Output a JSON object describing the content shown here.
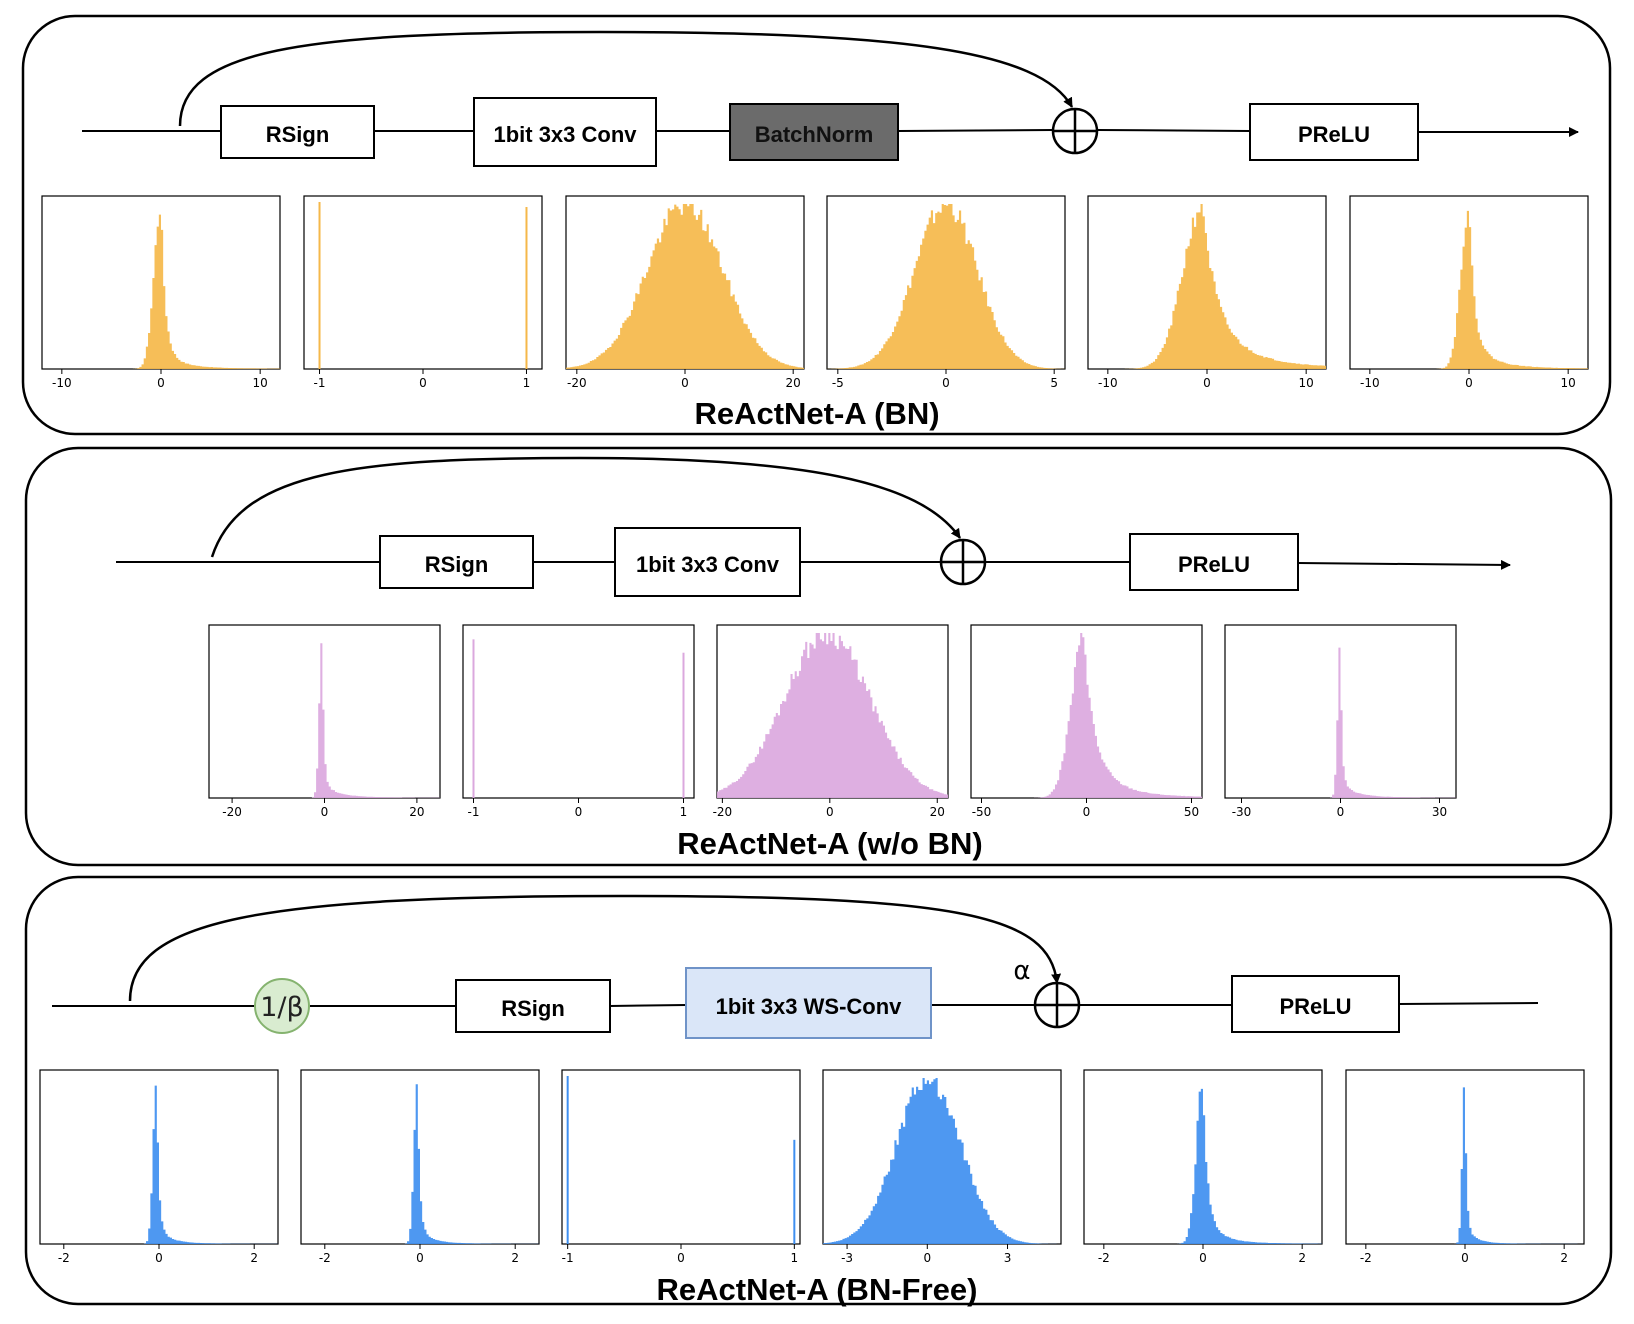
{
  "colors": {
    "bn": "#f5b84a",
    "wobn": "#dba8de",
    "bnfree": "#3f8ff0",
    "batchnorm_fill": "#6b6b6b",
    "wsconv_fill": "#dae6f8",
    "wsconv_stroke": "#6f93c8",
    "beta_fill": "#d9ecd0",
    "beta_stroke": "#85b36f"
  },
  "panels": [
    {
      "id": "bn",
      "title": "ReActNet-A (BN)",
      "color_key": "bn",
      "blocks": [
        {
          "id": "rsign",
          "label": "RSign"
        },
        {
          "id": "conv",
          "label": "1bit 3x3 Conv"
        },
        {
          "id": "batchnorm",
          "label": "BatchNorm"
        },
        {
          "id": "prelu",
          "label": "PReLU"
        }
      ],
      "histograms": [
        {
          "ticks": [
            "-10",
            "0",
            "10"
          ],
          "xlim": [
            -12,
            12
          ],
          "shape": "skew",
          "peak": 0,
          "left_width": 0.7,
          "right_width": 3.5,
          "peak_ratio": 6.0
        },
        {
          "ticks": [
            "-1",
            "0",
            "1"
          ],
          "xlim": [
            -1.15,
            1.15
          ],
          "shape": "binary",
          "left_height": 1.0,
          "right_height": 0.97
        },
        {
          "ticks": [
            "-20",
            "0",
            "20"
          ],
          "xlim": [
            -22,
            22
          ],
          "shape": "gauss",
          "mean": 0,
          "sd": 7
        },
        {
          "ticks": [
            "-5",
            "0",
            "5"
          ],
          "xlim": [
            -5.5,
            5.5
          ],
          "shape": "gauss",
          "mean": 0,
          "sd": 1.45
        },
        {
          "ticks": [
            "-10",
            "0",
            "10"
          ],
          "xlim": [
            -12,
            12
          ],
          "shape": "skew",
          "peak": -0.4,
          "left_width": 2.0,
          "right_width": 4.5,
          "peak_ratio": 1.0
        },
        {
          "ticks": [
            "-10",
            "0",
            "10"
          ],
          "xlim": [
            -12,
            12
          ],
          "shape": "skew",
          "peak": 0,
          "left_width": 0.8,
          "right_width": 3.5,
          "peak_ratio": 3.2
        }
      ]
    },
    {
      "id": "wobn",
      "title": "ReActNet-A (w/o BN)",
      "color_key": "wobn",
      "blocks": [
        {
          "id": "rsign",
          "label": "RSign"
        },
        {
          "id": "conv",
          "label": "1bit 3x3 Conv"
        },
        {
          "id": "prelu",
          "label": "PReLU"
        }
      ],
      "histograms": [
        {
          "ticks": [
            "-20",
            "0",
            "20"
          ],
          "xlim": [
            -25,
            25
          ],
          "shape": "skew",
          "peak": -0.5,
          "left_width": 0.6,
          "right_width": 7.0,
          "peak_ratio": 9.0
        },
        {
          "ticks": [
            "-1",
            "0",
            "1"
          ],
          "xlim": [
            -1.1,
            1.1
          ],
          "shape": "binary",
          "left_height": 0.95,
          "right_height": 0.87
        },
        {
          "ticks": [
            "-20",
            "0",
            "20"
          ],
          "xlim": [
            -21,
            22
          ],
          "shape": "gauss",
          "mean": -0.5,
          "sd": 8
        },
        {
          "ticks": [
            "-50",
            "0",
            "50"
          ],
          "xlim": [
            -55,
            55
          ],
          "shape": "skew",
          "peak": -1,
          "left_width": 6.0,
          "right_width": 14.0,
          "peak_ratio": 1.0
        },
        {
          "ticks": [
            "-30",
            "0",
            "30"
          ],
          "xlim": [
            -35,
            35
          ],
          "shape": "skew",
          "peak": 0,
          "left_width": 0.8,
          "right_width": 10.0,
          "peak_ratio": 9.0
        }
      ]
    },
    {
      "id": "bnfree",
      "title": "ReActNet-A (BN-Free)",
      "color_key": "bnfree",
      "alpha": "α",
      "beta_label": "1/β",
      "blocks": [
        {
          "id": "rsign",
          "label": "RSign"
        },
        {
          "id": "wsconv",
          "label": "1bit 3x3 WS-Conv"
        },
        {
          "id": "prelu",
          "label": "PReLU"
        }
      ],
      "histograms": [
        {
          "ticks": [
            "-2",
            "0",
            "2"
          ],
          "xlim": [
            -2.5,
            2.5
          ],
          "shape": "skew",
          "peak": -0.05,
          "left_width": 0.07,
          "right_width": 0.45,
          "peak_ratio": 6.0
        },
        {
          "ticks": [
            "-2",
            "0",
            "2"
          ],
          "xlim": [
            -2.5,
            2.5
          ],
          "shape": "skew",
          "peak": -0.05,
          "left_width": 0.07,
          "right_width": 0.45,
          "peak_ratio": 6.0
        },
        {
          "ticks": [
            "-1",
            "0",
            "1"
          ],
          "xlim": [
            -1.05,
            1.05
          ],
          "shape": "binary",
          "left_height": 1.0,
          "right_height": 0.62
        },
        {
          "ticks": [
            "-3",
            "0",
            "3"
          ],
          "xlim": [
            -3.9,
            5.0
          ],
          "shape": "gauss",
          "mean": 0.05,
          "sd": 1.2
        },
        {
          "ticks": [
            "-2",
            "0",
            "2"
          ],
          "xlim": [
            -2.4,
            2.4
          ],
          "shape": "skew",
          "peak": 0,
          "left_width": 0.13,
          "right_width": 0.5,
          "peak_ratio": 3.0
        },
        {
          "ticks": [
            "-2",
            "0",
            "2"
          ],
          "xlim": [
            -2.4,
            2.4
          ],
          "shape": "skew",
          "peak": 0,
          "left_width": 0.05,
          "right_width": 0.35,
          "peak_ratio": 6.0
        }
      ]
    }
  ]
}
